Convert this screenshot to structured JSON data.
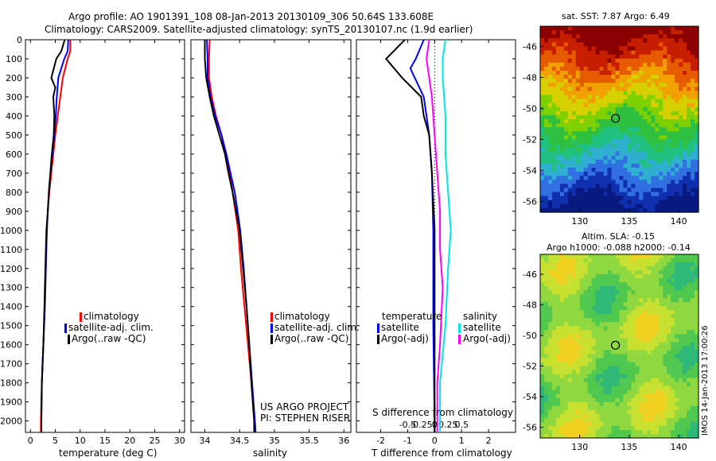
{
  "header": {
    "line1": "Argo profile: AO 1901391_108 08-Jan-2013 20130109_306 50.64S 133.608E",
    "line2": "Climatology: CARS2009. Satellite-adjusted climatology: synTS_20130107.nc (1.9d earlier)"
  },
  "colors": {
    "climatology": "#ff0000",
    "satellite": "#0000ff",
    "argo": "#000000",
    "satellite_salinity": "#00e5e5",
    "argo_salinity_adj": "#ff00ff"
  },
  "panels": {
    "temperature": {
      "xlabel": "temperature (deg C)",
      "legend": [
        "climatology",
        "satellite-adj. clim.",
        "Argo(..raw -QC)"
      ]
    },
    "salinity": {
      "xlabel": "salinity",
      "legend": [
        "climatology",
        "satellite-adj. clim.",
        "Argo(..raw -QC)"
      ],
      "credit_line1": "US ARGO PROJECT",
      "credit_line2": "PI: STEPHEN RISER"
    },
    "difference": {
      "xlabel_bottom": "T difference from climatology",
      "xlabel_top": "S difference from climatology",
      "legend_temperature_title": "temperature",
      "legend_salinity_title": "salinity",
      "legend_temperature": [
        "satellite",
        "Argo(-adj)"
      ],
      "legend_salinity": [
        "satellite",
        "Argo(-adj)"
      ]
    },
    "sst_map": {
      "title": "sat. SST: 7.87 Argo: 6.49"
    },
    "sla_map": {
      "title_line1": "Altim. SLA: -0.15",
      "title_line2": "Argo h1000: -0.088 h2000: -0.14",
      "side_label": "IMOS 14-Jan-2013 17:00:26"
    }
  },
  "chart_data": [
    {
      "type": "line",
      "name": "temperature",
      "xlabel": "temperature (deg C)",
      "ylabel": "",
      "xlim": [
        -1,
        31
      ],
      "ylim": [
        2060,
        0
      ],
      "x_ticks": [
        0,
        5,
        10,
        15,
        20,
        25,
        30
      ],
      "y_ticks": [
        0,
        100,
        200,
        300,
        400,
        500,
        600,
        700,
        800,
        900,
        1000,
        1100,
        1200,
        1300,
        1400,
        1500,
        1600,
        1700,
        1800,
        1900,
        2000
      ],
      "legend": "lower-middle",
      "series": [
        {
          "name": "climatology",
          "color": "#ff0000",
          "points": [
            [
              8.0,
              0
            ],
            [
              8.0,
              60
            ],
            [
              7.5,
              100
            ],
            [
              6.5,
              200
            ],
            [
              6.0,
              300
            ],
            [
              5.5,
              400
            ],
            [
              5.0,
              500
            ],
            [
              4.6,
              600
            ],
            [
              4.2,
              700
            ],
            [
              3.8,
              800
            ],
            [
              3.5,
              900
            ],
            [
              3.3,
              1000
            ],
            [
              3.1,
              1200
            ],
            [
              2.9,
              1400
            ],
            [
              2.6,
              1600
            ],
            [
              2.3,
              1800
            ],
            [
              2.1,
              2000
            ],
            [
              2.1,
              2060
            ]
          ]
        },
        {
          "name": "satellite-adj. clim.",
          "color": "#0000ff",
          "points": [
            [
              7.6,
              0
            ],
            [
              7.5,
              60
            ],
            [
              6.8,
              100
            ],
            [
              5.6,
              200
            ],
            [
              5.3,
              300
            ],
            [
              5.1,
              400
            ],
            [
              4.8,
              500
            ],
            [
              4.4,
              600
            ],
            [
              4.0,
              700
            ],
            [
              3.7,
              800
            ],
            [
              3.5,
              900
            ],
            [
              3.3,
              1000
            ],
            [
              3.1,
              1200
            ],
            [
              2.9,
              1400
            ],
            [
              2.6,
              1600
            ],
            [
              2.3,
              1800
            ],
            [
              2.2,
              2000
            ],
            [
              2.2,
              2060
            ]
          ]
        },
        {
          "name": "Argo(..raw -QC)",
          "color": "#000000",
          "points": [
            [
              6.9,
              0
            ],
            [
              6.2,
              60
            ],
            [
              5.2,
              100
            ],
            [
              4.2,
              200
            ],
            [
              5.0,
              250
            ],
            [
              4.6,
              300
            ],
            [
              4.8,
              400
            ],
            [
              4.7,
              500
            ],
            [
              4.3,
              600
            ],
            [
              4.0,
              700
            ],
            [
              3.7,
              800
            ],
            [
              3.5,
              900
            ],
            [
              3.2,
              1000
            ],
            [
              3.0,
              1200
            ],
            [
              2.8,
              1400
            ],
            [
              2.6,
              1600
            ],
            [
              2.3,
              1800
            ],
            [
              2.2,
              2000
            ],
            [
              2.2,
              2060
            ]
          ]
        }
      ]
    },
    {
      "type": "line",
      "name": "salinity",
      "xlabel": "salinity",
      "ylabel": "",
      "xlim": [
        33.8,
        36.1
      ],
      "ylim": [
        2060,
        0
      ],
      "x_ticks": [
        34,
        34.5,
        35,
        35.5,
        36
      ],
      "legend": "lower-middle",
      "series": [
        {
          "name": "climatology",
          "color": "#ff0000",
          "points": [
            [
              34.07,
              0
            ],
            [
              34.06,
              100
            ],
            [
              34.06,
              200
            ],
            [
              34.1,
              300
            ],
            [
              34.16,
              400
            ],
            [
              34.24,
              500
            ],
            [
              34.3,
              600
            ],
            [
              34.36,
              700
            ],
            [
              34.4,
              800
            ],
            [
              34.44,
              900
            ],
            [
              34.48,
              1000
            ],
            [
              34.52,
              1200
            ],
            [
              34.57,
              1400
            ],
            [
              34.62,
              1600
            ],
            [
              34.67,
              1800
            ],
            [
              34.71,
              2000
            ],
            [
              34.72,
              2060
            ]
          ]
        },
        {
          "name": "satellite-adj. clim.",
          "color": "#0000ff",
          "points": [
            [
              34.03,
              0
            ],
            [
              34.04,
              100
            ],
            [
              34.04,
              200
            ],
            [
              34.08,
              300
            ],
            [
              34.15,
              400
            ],
            [
              34.24,
              500
            ],
            [
              34.31,
              600
            ],
            [
              34.37,
              700
            ],
            [
              34.43,
              800
            ],
            [
              34.47,
              900
            ],
            [
              34.51,
              1000
            ],
            [
              34.56,
              1200
            ],
            [
              34.6,
              1400
            ],
            [
              34.64,
              1600
            ],
            [
              34.68,
              1800
            ],
            [
              34.72,
              2000
            ],
            [
              34.73,
              2060
            ]
          ]
        },
        {
          "name": "Argo(..raw -QC)",
          "color": "#000000",
          "points": [
            [
              34.0,
              0
            ],
            [
              34.0,
              100
            ],
            [
              34.02,
              200
            ],
            [
              34.07,
              300
            ],
            [
              34.13,
              400
            ],
            [
              34.21,
              500
            ],
            [
              34.29,
              600
            ],
            [
              34.34,
              700
            ],
            [
              34.4,
              800
            ],
            [
              34.45,
              900
            ],
            [
              34.5,
              1000
            ],
            [
              34.55,
              1200
            ],
            [
              34.6,
              1400
            ],
            [
              34.64,
              1600
            ],
            [
              34.67,
              1800
            ],
            [
              34.71,
              2000
            ],
            [
              34.71,
              2060
            ]
          ]
        }
      ]
    },
    {
      "type": "line",
      "name": "difference",
      "xlabel": "T difference from climatology",
      "xlabel_top": "S difference from climatology",
      "xlim": [
        -2.9,
        3.0
      ],
      "ylim": [
        2060,
        0
      ],
      "x_ticks": [
        -2,
        -1,
        0,
        1,
        2
      ],
      "x_tick_labels": [
        "-2",
        "-1",
        "0",
        "1",
        "2"
      ],
      "x_ticks_top": [
        -0.5,
        -0.25,
        0,
        0.25,
        0.5
      ],
      "legend": "lower-middle",
      "series": [
        {
          "name": "satellite",
          "group": "temperature",
          "color": "#0000ff",
          "points": [
            [
              -0.4,
              0
            ],
            [
              -0.7,
              100
            ],
            [
              -0.9,
              150
            ],
            [
              -0.4,
              300
            ],
            [
              -0.3,
              400
            ],
            [
              -0.2,
              500
            ],
            [
              -0.1,
              700
            ],
            [
              -0.05,
              1000
            ],
            [
              -0.05,
              1500
            ],
            [
              0.0,
              2000
            ],
            [
              0.0,
              2060
            ]
          ]
        },
        {
          "name": "Argo(-adj)",
          "group": "temperature",
          "color": "#000000",
          "points": [
            [
              -1.1,
              0
            ],
            [
              -1.8,
              100
            ],
            [
              -1.2,
              200
            ],
            [
              -0.5,
              300
            ],
            [
              -0.4,
              400
            ],
            [
              -0.2,
              500
            ],
            [
              -0.1,
              700
            ],
            [
              0.0,
              1000
            ],
            [
              0.0,
              1500
            ],
            [
              0.0,
              2000
            ],
            [
              0.0,
              2060
            ]
          ]
        },
        {
          "name": "satellite",
          "group": "salinity",
          "color": "#00e5e5",
          "points": [
            [
              0.4,
              0
            ],
            [
              0.3,
              100
            ],
            [
              0.3,
              200
            ],
            [
              0.4,
              400
            ],
            [
              0.4,
              600
            ],
            [
              0.5,
              800
            ],
            [
              0.6,
              1000
            ],
            [
              0.5,
              1200
            ],
            [
              0.4,
              1500
            ],
            [
              0.2,
              1800
            ],
            [
              0.2,
              2060
            ]
          ]
        },
        {
          "name": "Argo(-adj)",
          "group": "salinity",
          "color": "#ff00ff",
          "points": [
            [
              -0.2,
              0
            ],
            [
              -0.3,
              100
            ],
            [
              -0.2,
              200
            ],
            [
              -0.1,
              300
            ],
            [
              0.0,
              500
            ],
            [
              0.1,
              700
            ],
            [
              0.2,
              900
            ],
            [
              0.2,
              1100
            ],
            [
              0.3,
              1300
            ],
            [
              0.2,
              1600
            ],
            [
              0.1,
              1800
            ],
            [
              0.1,
              2060
            ]
          ]
        }
      ]
    },
    {
      "type": "heatmap",
      "name": "sst_map",
      "title": "sat. SST: 7.87 Argo: 6.49",
      "xlim": [
        126,
        142
      ],
      "ylim": [
        -56.7,
        -44.7
      ],
      "x_ticks": [
        130,
        135,
        140
      ],
      "y_ticks": [
        -46,
        -48,
        -50,
        -52,
        -54,
        -56
      ],
      "marker": {
        "lon": 133.608,
        "lat": -50.64
      }
    },
    {
      "type": "heatmap",
      "name": "sla_map",
      "title": "Altim. SLA: -0.15",
      "subtitle": "Argo h1000: -0.088 h2000: -0.14",
      "xlim": [
        126,
        142
      ],
      "ylim": [
        -56.7,
        -44.7
      ],
      "x_ticks": [
        130,
        135,
        140
      ],
      "y_ticks": [
        -46,
        -48,
        -50,
        -52,
        -54,
        -56
      ],
      "marker": {
        "lon": 133.608,
        "lat": -50.64
      }
    }
  ]
}
